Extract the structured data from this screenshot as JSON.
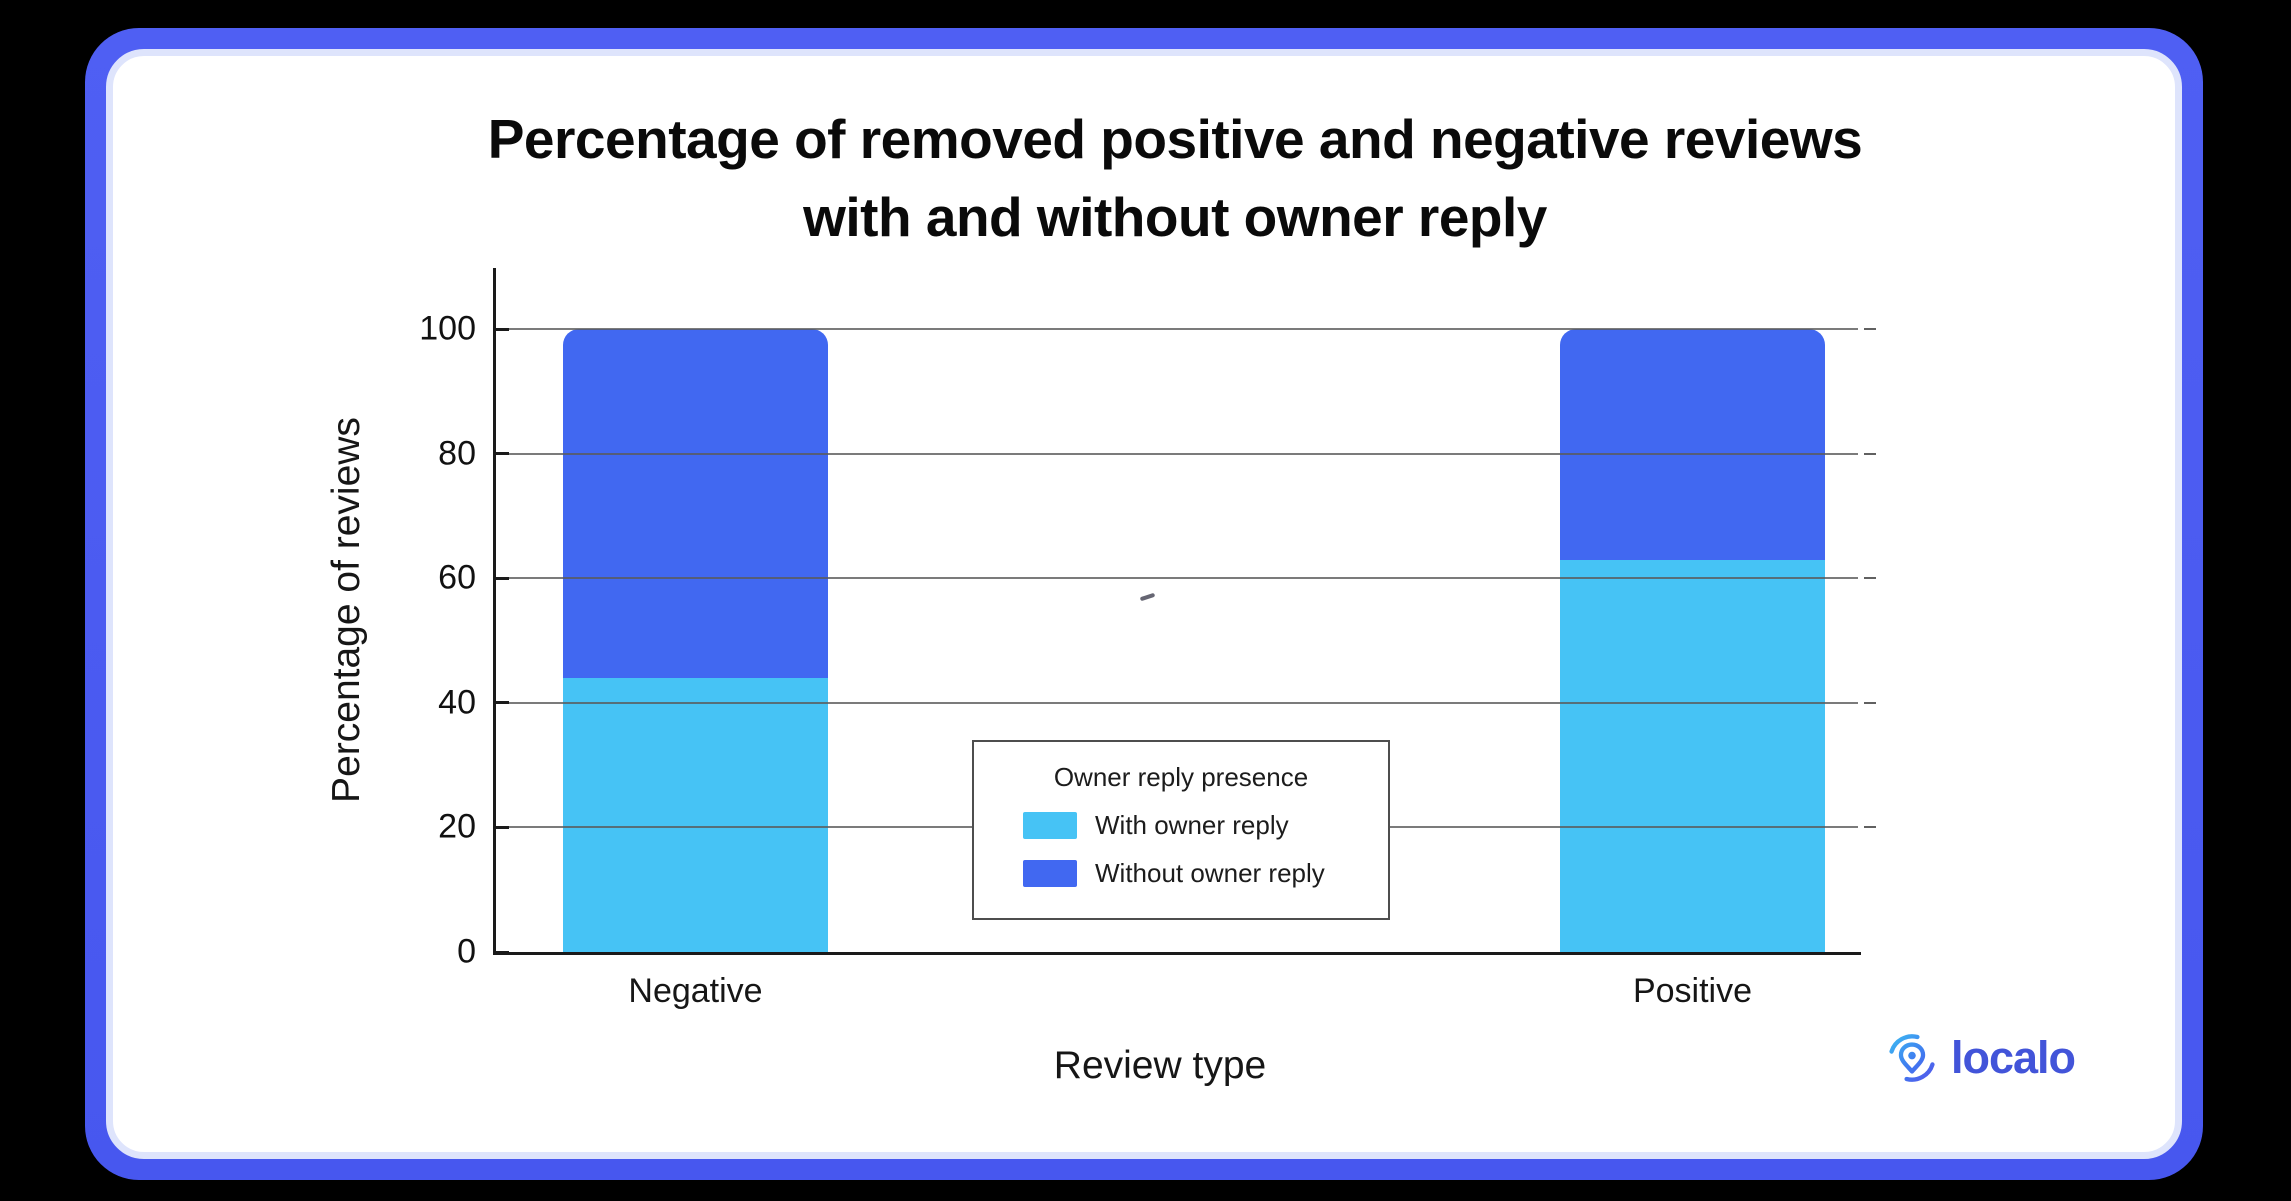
{
  "page": {
    "background_color": "#000000",
    "frame_color": "#4b5cf2",
    "inner_ring_color": "#dee4fc",
    "card_color": "#ffffff"
  },
  "chart_data": {
    "type": "bar",
    "stacked": true,
    "title": "Percentage of removed positive and negative reviews with and without owner reply",
    "title_lines": [
      "Percentage of removed positive and negative reviews",
      "with and without owner reply"
    ],
    "xlabel": "Review type",
    "ylabel": "Percentage of reviews",
    "categories": [
      "Negative",
      "Positive"
    ],
    "series": [
      {
        "name": "With owner reply",
        "color": "#46c3f5",
        "values": [
          44,
          63
        ]
      },
      {
        "name": "Without owner reply",
        "color": "#4168f1",
        "values": [
          56,
          37
        ]
      }
    ],
    "ylim": [
      0,
      100
    ],
    "yticks": [
      0,
      20,
      40,
      60,
      80,
      100
    ],
    "grid": true,
    "grid_color": "#5a5a5a",
    "legend": {
      "title": "Owner reply presence",
      "position": "center-bottom"
    }
  },
  "logo": {
    "text": "localo",
    "text_color": "#4254d9",
    "icon": "localo-pin-icon",
    "icon_gradient_start": "#3ec9f2",
    "icon_gradient_end": "#5b4be8"
  }
}
